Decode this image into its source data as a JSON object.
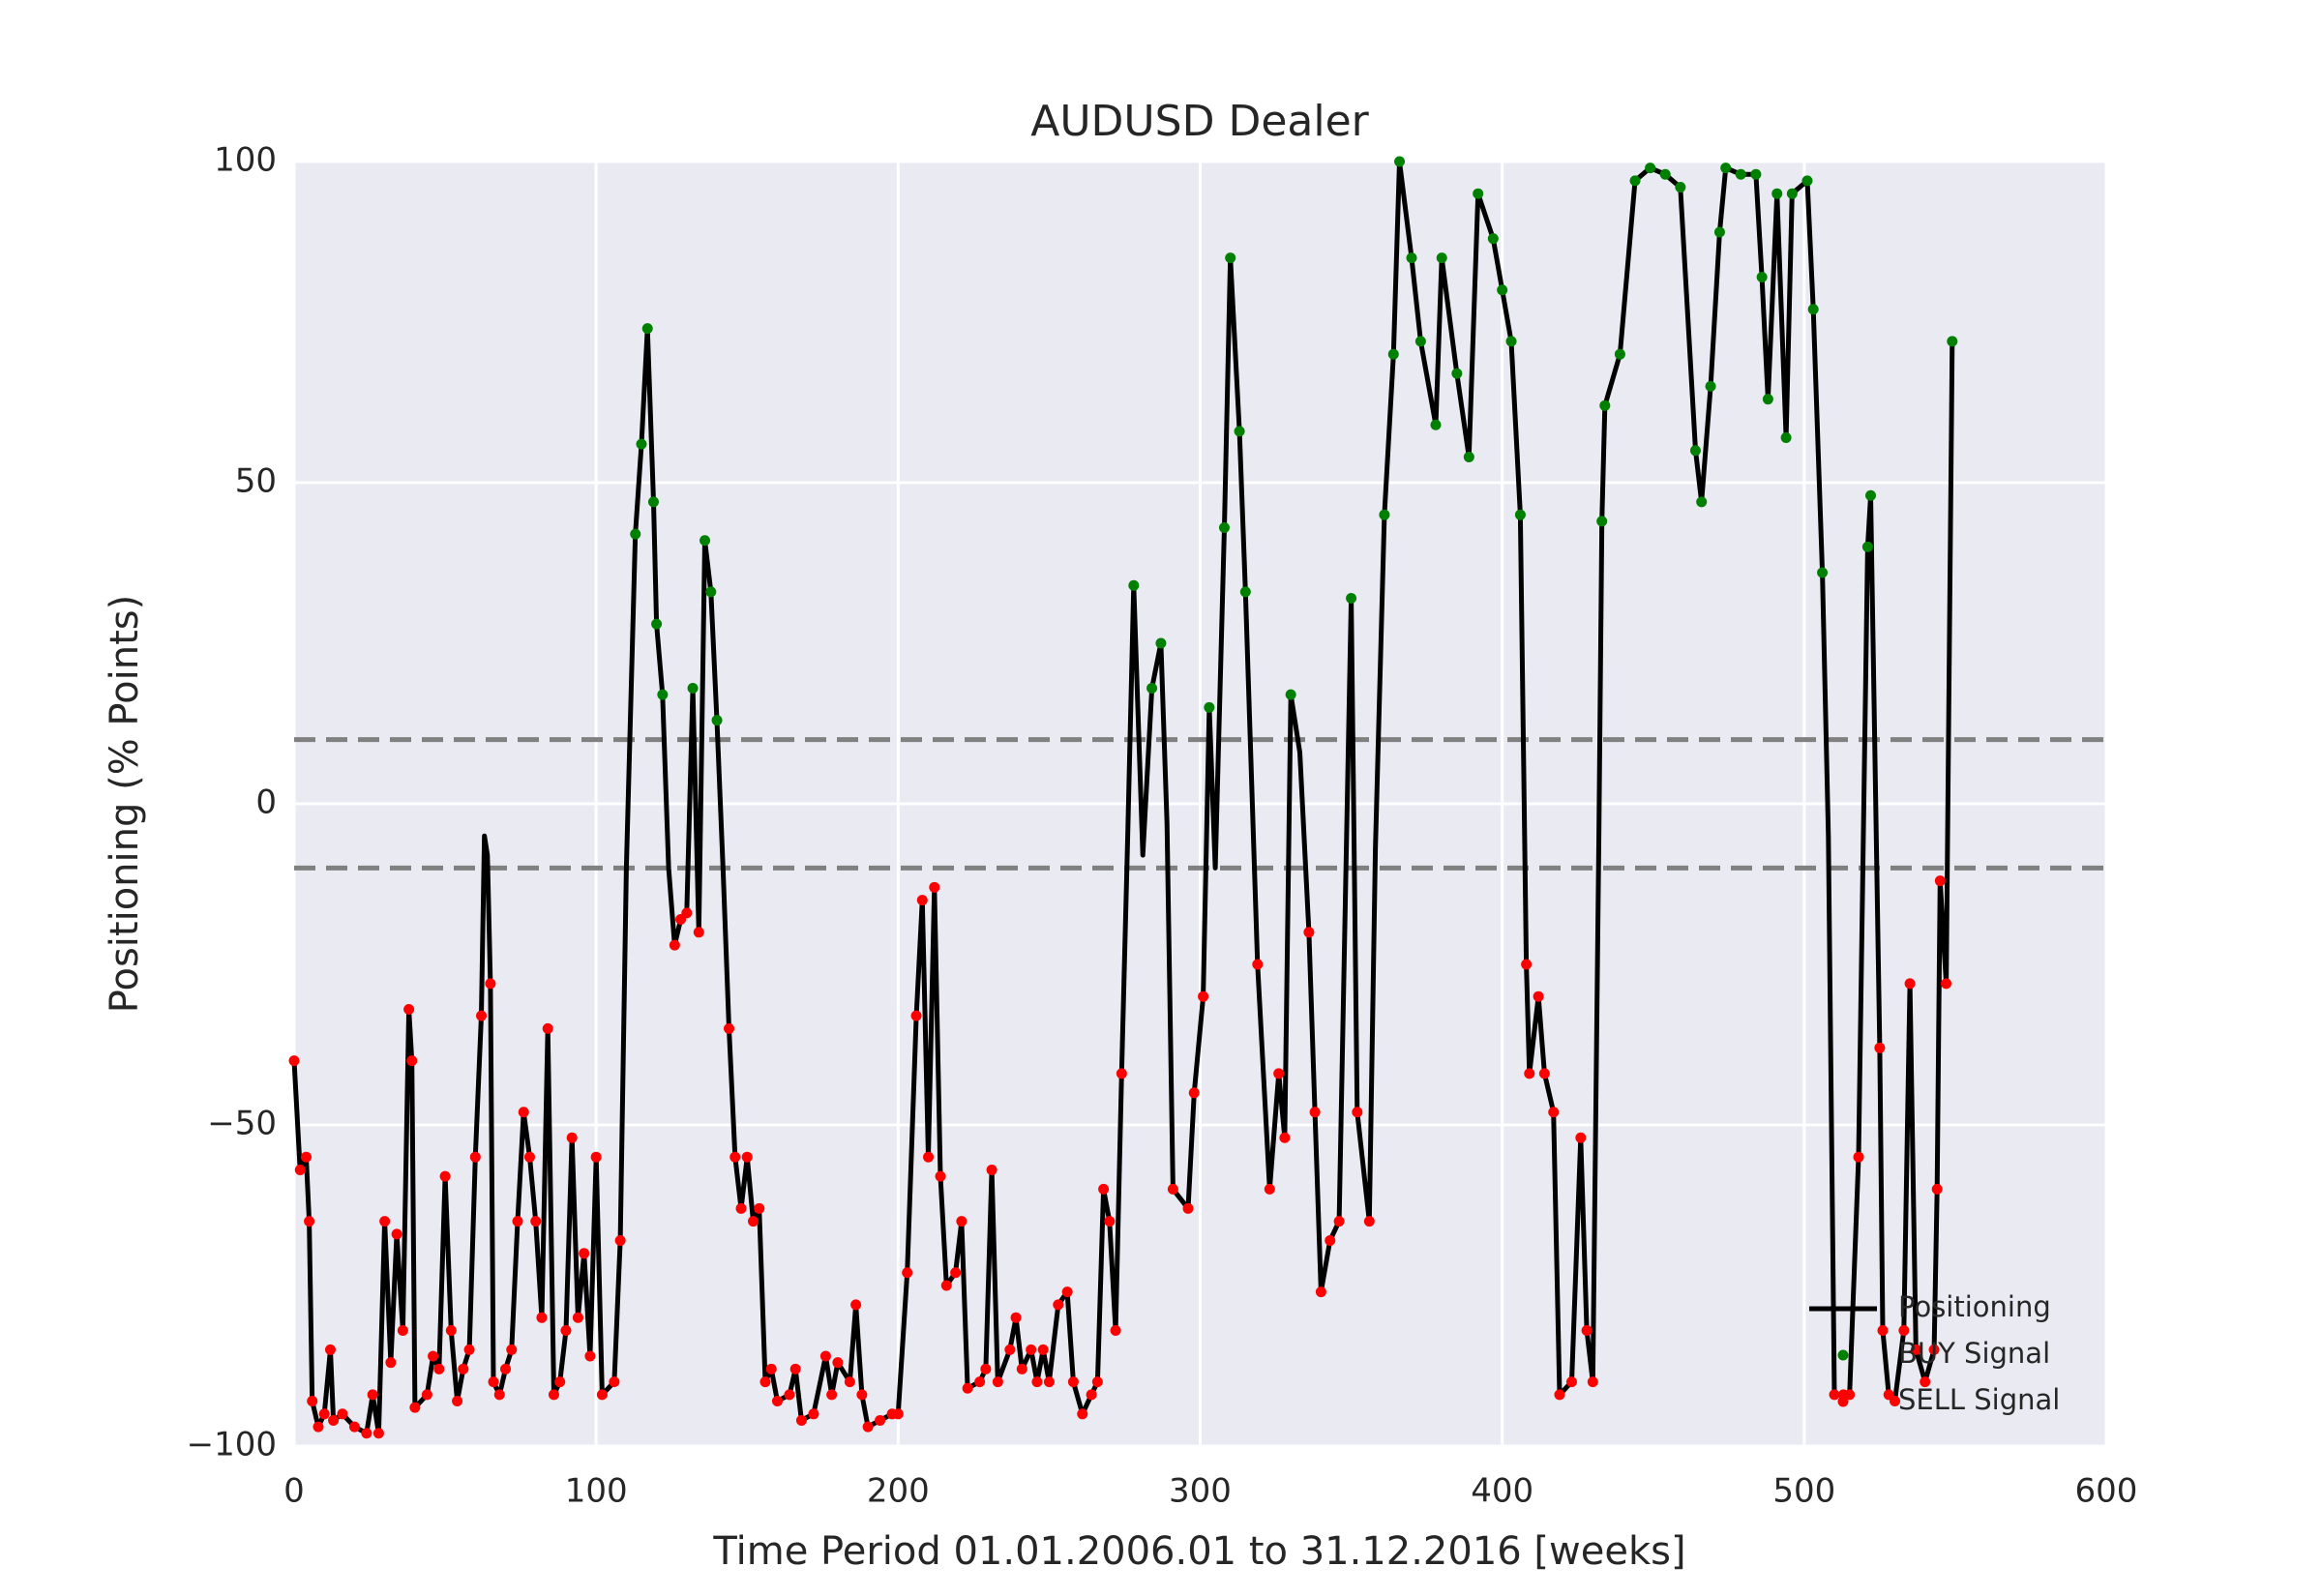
{
  "chart_data": {
    "type": "line",
    "title": "AUDUSD Dealer",
    "x_label": "Time Period 01.01.2006.01 to 31.12.2016 [weeks]",
    "y_label": "Positioning (% Points)",
    "xlim": [
      0,
      600
    ],
    "ylim": [
      -100,
      100
    ],
    "xticks": [
      0,
      100,
      200,
      300,
      400,
      500,
      600
    ],
    "yticks": [
      {
        "value": -100,
        "label": "−100"
      },
      {
        "value": -50,
        "label": "−50"
      },
      0,
      50,
      100
    ],
    "grid": true,
    "legend": "lower right",
    "reference_lines": [
      10,
      -10
    ],
    "x": [
      0,
      2,
      4,
      5,
      6,
      8,
      10,
      12,
      13,
      16,
      20,
      24,
      26,
      28,
      30,
      32,
      34,
      36,
      38,
      39,
      40,
      44,
      46,
      48,
      50,
      52,
      54,
      56,
      58,
      60,
      62,
      63,
      64,
      65,
      66,
      68,
      70,
      72,
      74,
      76,
      78,
      80,
      82,
      84,
      86,
      88,
      90,
      92,
      94,
      96,
      98,
      100,
      102,
      106,
      108,
      110,
      113,
      115,
      117,
      119,
      120,
      122,
      124,
      126,
      128,
      130,
      132,
      134,
      136,
      138,
      140,
      142,
      144,
      146,
      148,
      150,
      152,
      154,
      156,
      158,
      160,
      164,
      166,
      168,
      172,
      176,
      178,
      180,
      184,
      186,
      188,
      190,
      194,
      198,
      200,
      203,
      206,
      208,
      210,
      212,
      214,
      216,
      219,
      221,
      223,
      227,
      229,
      231,
      233,
      237,
      239,
      241,
      244,
      246,
      248,
      250,
      253,
      256,
      258,
      261,
      264,
      266,
      268,
      270,
      272,
      274,
      276,
      278,
      281,
      284,
      287,
      289,
      291,
      296,
      298,
      301,
      303,
      305,
      308,
      310,
      313,
      315,
      319,
      323,
      326,
      328,
      330,
      333,
      336,
      338,
      340,
      343,
      346,
      350,
      352,
      356,
      358,
      361,
      364,
      366,
      370,
      373,
      378,
      380,
      385,
      389,
      392,
      397,
      400,
      403,
      406,
      408,
      409,
      412,
      414,
      417,
      419,
      423,
      426,
      428,
      430,
      432,
      433,
      434,
      439,
      444,
      449,
      454,
      459,
      464,
      466,
      469,
      472,
      474,
      479,
      484,
      486,
      488,
      491,
      494,
      496,
      501,
      503,
      506,
      508,
      510,
      513,
      515,
      518,
      521,
      522,
      525,
      526,
      528,
      530,
      533,
      535,
      537,
      540,
      543,
      544,
      545,
      547,
      549
    ],
    "series": [
      {
        "name": "Positioning",
        "color": "#000000",
        "values": [
          -40,
          -57,
          -55,
          -65,
          -93,
          -97,
          -95,
          -85,
          -96,
          -95,
          -97,
          -98,
          -92,
          -98,
          -65,
          -87,
          -67,
          -82,
          -32,
          -40,
          -94,
          -92,
          -86,
          -88,
          -58,
          -82,
          -93,
          -88,
          -85,
          -55,
          -33,
          -5,
          -8,
          -28,
          -90,
          -92,
          -88,
          -85,
          -65,
          -48,
          -55,
          -65,
          -80,
          -35,
          -92,
          -90,
          -82,
          -52,
          -80,
          -70,
          -86,
          -55,
          -92,
          -90,
          -68,
          -10,
          42,
          56,
          74,
          47,
          28,
          17,
          -10,
          -22,
          -18,
          -17,
          18,
          -20,
          41,
          33,
          13,
          -10,
          -35,
          -55,
          -63,
          -55,
          -65,
          -63,
          -90,
          -88,
          -93,
          -92,
          -88,
          -96,
          -95,
          -86,
          -92,
          -87,
          -90,
          -78,
          -92,
          -97,
          -96,
          -95,
          -95,
          -73,
          -33,
          -15,
          -55,
          -13,
          -58,
          -75,
          -73,
          -65,
          -91,
          -90,
          -88,
          -57,
          -90,
          -85,
          -80,
          -88,
          -85,
          -90,
          -85,
          -90,
          -78,
          -76,
          -90,
          -95,
          -92,
          -90,
          -60,
          -65,
          -82,
          -42,
          -5,
          34,
          -8,
          18,
          25,
          -3,
          -60,
          -63,
          -45,
          -30,
          15,
          -10,
          43,
          85,
          58,
          33,
          -25,
          -60,
          -42,
          -52,
          17,
          8,
          -20,
          -48,
          -76,
          -68,
          -65,
          32,
          -48,
          -65,
          -7,
          45,
          70,
          100,
          85,
          72,
          59,
          85,
          67,
          54,
          95,
          88,
          80,
          72,
          45,
          -25,
          -42,
          -30,
          -42,
          -48,
          -92,
          -90,
          -52,
          -82,
          -90,
          -5,
          44,
          62,
          70,
          97,
          99,
          98,
          96,
          55,
          47,
          65,
          89,
          99,
          98,
          98,
          82,
          63,
          95,
          57,
          95,
          97,
          77,
          36,
          -5,
          -92,
          -92,
          -92,
          -55,
          40,
          48,
          -38,
          -82,
          -92,
          -93,
          -82,
          -28,
          -85,
          -90,
          -85,
          -60,
          -12,
          -28,
          72
        ]
      }
    ],
    "signals": [
      {
        "name": "BUY Signal",
        "color": "#008000"
      },
      {
        "name": "SELL Signal",
        "color": "#ff0000"
      }
    ]
  }
}
